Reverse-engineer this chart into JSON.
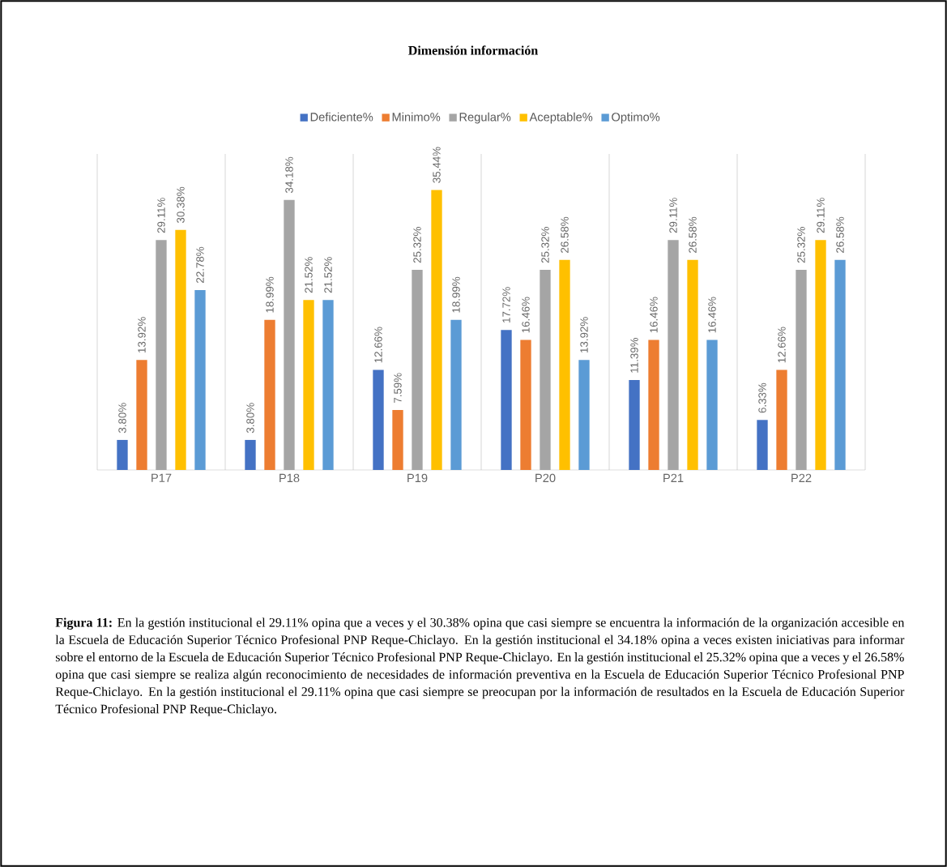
{
  "chart_data": {
    "type": "bar",
    "title": "Dimensión información",
    "categories": [
      "P17",
      "P18",
      "P19",
      "P20",
      "P21",
      "P22"
    ],
    "series": [
      {
        "name": "Deficiente%",
        "color": "#4472c4",
        "values": [
          3.8,
          3.8,
          12.66,
          17.72,
          11.39,
          6.33
        ],
        "value_labels": [
          "3.80%",
          "3.80%",
          "12.66%",
          "17.72%",
          "11.39%",
          "6.33%"
        ]
      },
      {
        "name": "Minimo%",
        "color": "#ed7d31",
        "values": [
          13.92,
          18.99,
          7.59,
          16.46,
          16.46,
          12.66
        ],
        "value_labels": [
          "13.92%",
          "18.99%",
          "7.59%",
          "16.46%",
          "16.46%",
          "12.66%"
        ]
      },
      {
        "name": "Regular%",
        "color": "#a5a5a5",
        "values": [
          29.11,
          34.18,
          25.32,
          25.32,
          29.11,
          25.32
        ],
        "value_labels": [
          "29.11%",
          "34.18%",
          "25.32%",
          "25.32%",
          "29.11%",
          "25.32%"
        ]
      },
      {
        "name": "Aceptable%",
        "color": "#ffc000",
        "values": [
          30.38,
          21.52,
          35.44,
          26.58,
          26.58,
          29.11
        ],
        "value_labels": [
          "30.38%",
          "21.52%",
          "35.44%",
          "26.58%",
          "26.58%",
          "29.11%"
        ]
      },
      {
        "name": "Optimo%",
        "color": "#5b9bd5",
        "values": [
          22.78,
          21.52,
          18.99,
          13.92,
          16.46,
          26.58
        ],
        "value_labels": [
          "22.78%",
          "21.52%",
          "18.99%",
          "13.92%",
          "16.46%",
          "26.58%"
        ]
      }
    ],
    "ylim": [
      0,
      40
    ],
    "tick_labels": "x",
    "grid": "x",
    "legend": "top",
    "annotations": [
      "**Figura 11:** En la gestión institucional el 29.11% opina que a veces y el 30.38% opina que casi siempre se encuentra la información de la organización accesible en la Escuela de Educación Superior Técnico Profesional PNP Reque-Chiclayo. En la gestión institucional el 34.18% opina a veces existen iniciativas para informar sobre el entorno de la Escuela de Educación Superior Técnico Profesional PNP Reque-Chiclayo.  En la gestión institucional el 25.32% opina que a veces y el 26.58% opina que casi siempre se realiza algún reconocimiento de necesidades de información preventiva en la Escuela de Educación Superior Técnico Profesional PNP Reque-Chiclayo. En la gestión institucional el 29.11% opina que casi siempre se preocupan por la información de resultados en la Escuela de Educación Superior Técnico Profesional PNP Reque-Chiclayo."
    ]
  }
}
